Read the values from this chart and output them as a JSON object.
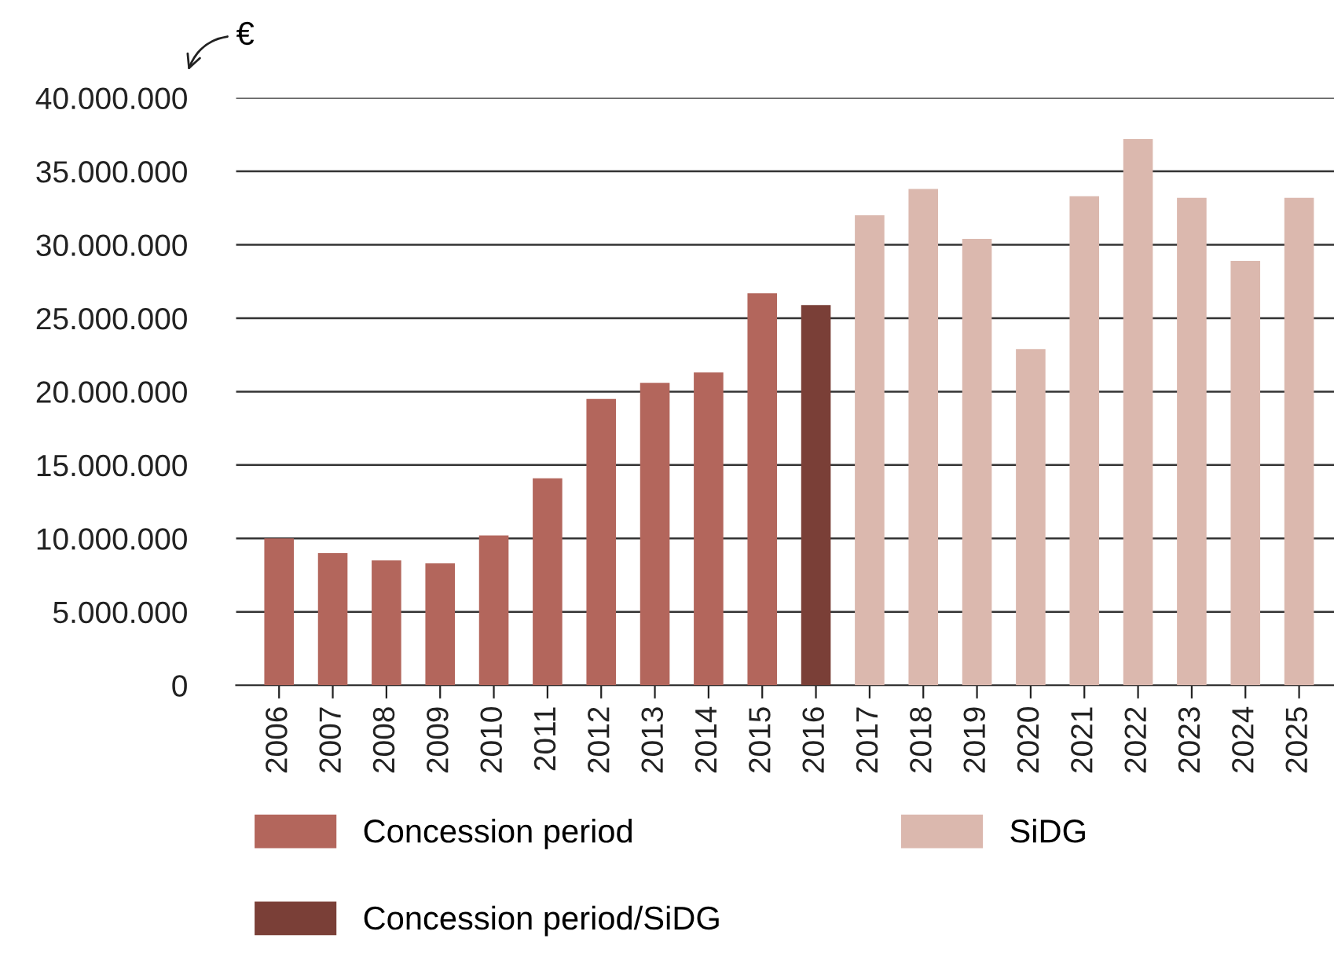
{
  "chart_data": {
    "type": "bar",
    "categories": [
      "2006",
      "2007",
      "2008",
      "2009",
      "2010",
      "2011",
      "2012",
      "2013",
      "2014",
      "2015",
      "2016",
      "2017",
      "2018",
      "2019",
      "2020",
      "2021",
      "2022",
      "2023",
      "2024",
      "2025"
    ],
    "series": [
      {
        "name": "Concession period",
        "color": "#b3665c",
        "values": [
          10000000,
          9000000,
          8500000,
          8300000,
          10200000,
          14100000,
          19500000,
          20600000,
          21300000,
          26700000,
          null,
          null,
          null,
          null,
          null,
          null,
          null,
          null,
          null,
          null
        ]
      },
      {
        "name": "Concession period/SiDG",
        "color": "#7a3f37",
        "values": [
          null,
          null,
          null,
          null,
          null,
          null,
          null,
          null,
          null,
          null,
          25900000,
          null,
          null,
          null,
          null,
          null,
          null,
          null,
          null,
          null
        ]
      },
      {
        "name": "SiDG",
        "color": "#dbb8ae",
        "values": [
          null,
          null,
          null,
          null,
          null,
          null,
          null,
          null,
          null,
          null,
          null,
          32000000,
          33800000,
          30400000,
          22900000,
          33300000,
          37200000,
          33200000,
          28900000,
          33200000
        ]
      }
    ],
    "ylim": [
      0,
      40000000
    ],
    "yticks": [
      {
        "value": 0,
        "label": "0"
      },
      {
        "value": 5000000,
        "label": "5.000.000"
      },
      {
        "value": 10000000,
        "label": "10.000.000"
      },
      {
        "value": 15000000,
        "label": "15.000.000"
      },
      {
        "value": 20000000,
        "label": "20.000.000"
      },
      {
        "value": 25000000,
        "label": "25.000.000"
      },
      {
        "value": 30000000,
        "label": "30.000.000"
      },
      {
        "value": 35000000,
        "label": "35.000.000"
      },
      {
        "value": 40000000,
        "label": "40.000.000"
      }
    ],
    "grid": "y",
    "legend": "bottom",
    "annotations": [
      "€"
    ]
  }
}
